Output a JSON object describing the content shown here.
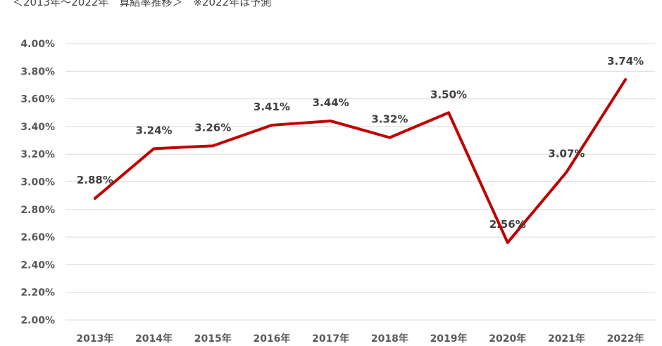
{
  "caption": "＜2013年〜2022年　算結率推移＞　※2022年は予測",
  "chart_data": {
    "type": "line",
    "categories": [
      "2013年",
      "2014年",
      "2015年",
      "2016年",
      "2017年",
      "2018年",
      "2019年",
      "2020年",
      "2021年",
      "2022年"
    ],
    "series": [
      {
        "values": [
          2.88,
          3.24,
          3.26,
          3.41,
          3.44,
          3.32,
          3.5,
          2.56,
          3.07,
          3.74
        ],
        "labels": [
          "2.88%",
          "3.24%",
          "3.26%",
          "3.41%",
          "3.44%",
          "3.32%",
          "3.50%",
          "2.56%",
          "3.07%",
          "3.74%"
        ],
        "color": "#C00000"
      }
    ],
    "yticks": [
      "2.00%",
      "2.20%",
      "2.40%",
      "2.60%",
      "2.80%",
      "3.00%",
      "3.20%",
      "3.40%",
      "3.60%",
      "3.80%",
      "4.00%"
    ],
    "ylim": [
      2.0,
      4.0
    ],
    "grid": true,
    "gridColor": "#D9D9D9"
  }
}
